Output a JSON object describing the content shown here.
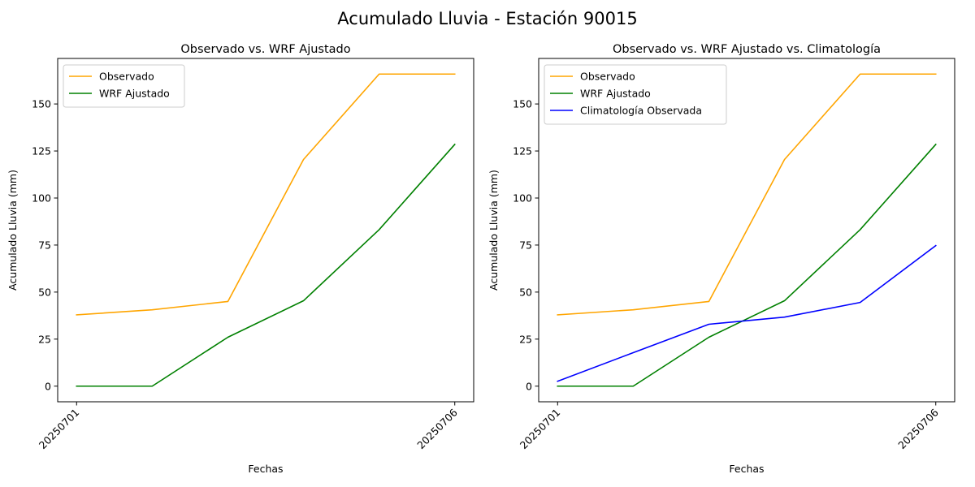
{
  "figure": {
    "suptitle": "Acumulado Lluvia - Estación 90015"
  },
  "colors": {
    "observado": "#ffa500",
    "wrf": "#008000",
    "clima": "#0000ff"
  },
  "chart_data": [
    {
      "type": "line",
      "title": "Observado vs. WRF Ajustado",
      "xlabel": "Fechas",
      "ylabel": "Acumulado Lluvia (mm)",
      "x": [
        1,
        2,
        3,
        4,
        5,
        6
      ],
      "xticks": [
        1,
        6
      ],
      "xtick_labels": [
        "20250701",
        "20250706"
      ],
      "yticks": [
        0,
        25,
        50,
        75,
        100,
        125,
        150
      ],
      "xlim": [
        0.75,
        6.25
      ],
      "ylim": [
        -8.3,
        174.2
      ],
      "legend": "upper-left",
      "series": [
        {
          "name": "Observado",
          "color": "#ffa500",
          "values": [
            37.9,
            40.6,
            45.0,
            120.5,
            165.9,
            165.9
          ]
        },
        {
          "name": "WRF Ajustado",
          "color": "#008000",
          "values": [
            0.0,
            0.0,
            26.0,
            45.4,
            83.2,
            128.5
          ]
        }
      ]
    },
    {
      "type": "line",
      "title": "Observado vs. WRF Ajustado vs. Climatología",
      "xlabel": "Fechas",
      "ylabel": "Acumulado Lluvia (mm)",
      "x": [
        1,
        2,
        3,
        4,
        5,
        6
      ],
      "xticks": [
        1,
        6
      ],
      "xtick_labels": [
        "20250701",
        "20250706"
      ],
      "yticks": [
        0,
        25,
        50,
        75,
        100,
        125,
        150
      ],
      "xlim": [
        0.75,
        6.25
      ],
      "ylim": [
        -8.3,
        174.2
      ],
      "legend": "upper-left",
      "series": [
        {
          "name": "Observado",
          "color": "#ffa500",
          "values": [
            37.9,
            40.6,
            45.0,
            120.5,
            165.9,
            165.9
          ]
        },
        {
          "name": "WRF Ajustado",
          "color": "#008000",
          "values": [
            0.0,
            0.0,
            26.0,
            45.4,
            83.2,
            128.5
          ]
        },
        {
          "name": "Climatología Observada",
          "color": "#0000ff",
          "values": [
            2.6,
            17.8,
            32.9,
            36.7,
            44.5,
            74.7
          ]
        }
      ]
    }
  ]
}
